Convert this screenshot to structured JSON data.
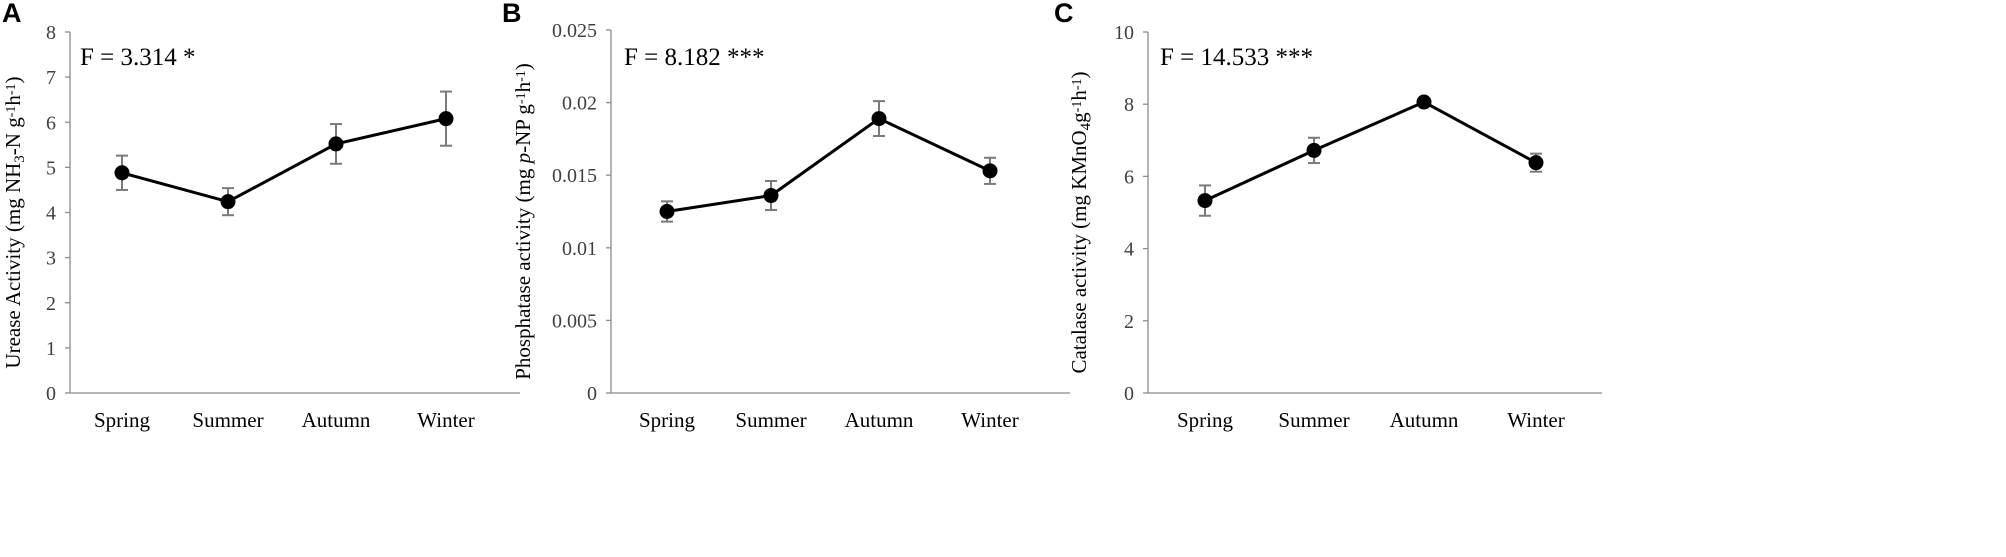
{
  "chart_data": [
    {
      "type": "line",
      "panel": "A",
      "annotation": "F = 3.314 *",
      "ylabel_parts": [
        "Urease Activity (mg NH",
        "3",
        "-N g",
        "-1",
        "h",
        "-1",
        ")"
      ],
      "categories": [
        "Spring",
        "Summer",
        "Autumn",
        "Winter"
      ],
      "values": [
        4.88,
        4.24,
        5.52,
        6.08
      ],
      "errors": [
        0.38,
        0.3,
        0.44,
        0.6
      ],
      "ylim": [
        0,
        8
      ],
      "yticks": [
        "0",
        "1",
        "2",
        "3",
        "4",
        "5",
        "6",
        "7",
        "8"
      ],
      "grid": false
    },
    {
      "type": "line",
      "panel": "B",
      "annotation": "F = 8.182 ***",
      "ylabel_parts": [
        "Phosphatase activity (mg ",
        "p",
        "-NP g",
        "-1",
        "h",
        "-1",
        ")"
      ],
      "categories": [
        "Spring",
        "Summer",
        "Autumn",
        "Winter"
      ],
      "values": [
        0.0125,
        0.0136,
        0.0189,
        0.0153
      ],
      "errors": [
        0.0007,
        0.001,
        0.0012,
        0.0009
      ],
      "ylim": [
        0,
        0.025
      ],
      "yticks": [
        "0",
        "0.005",
        "0.01",
        "0.015",
        "0.02",
        "0.025"
      ],
      "grid": false
    },
    {
      "type": "line",
      "panel": "C",
      "annotation": "F = 14.533 ***",
      "ylabel_parts": [
        "Catalase activity (mg KMnO",
        "4",
        "g",
        "-1",
        "h",
        "-1",
        ")"
      ],
      "categories": [
        "Spring",
        "Summer",
        "Autumn",
        "Winter"
      ],
      "values": [
        5.33,
        6.72,
        8.06,
        6.38
      ],
      "errors": [
        0.42,
        0.35,
        0.1,
        0.25
      ],
      "ylim": [
        0,
        10
      ],
      "yticks": [
        "0",
        "2",
        "4",
        "6",
        "8",
        "10"
      ],
      "grid": false
    }
  ]
}
